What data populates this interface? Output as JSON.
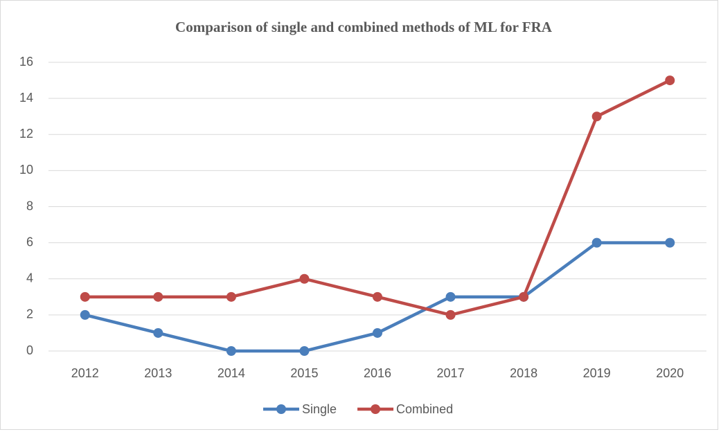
{
  "chart_data": {
    "type": "line",
    "title": "Comparison of single and combined methods of ML for FRA",
    "categories": [
      "2012",
      "2013",
      "2014",
      "2015",
      "2016",
      "2017",
      "2018",
      "2019",
      "2020"
    ],
    "series": [
      {
        "name": "Single",
        "color": "#4a7ebb",
        "values": [
          2,
          1,
          0,
          0,
          1,
          3,
          3,
          6,
          6
        ]
      },
      {
        "name": "Combined",
        "color": "#be4b48",
        "values": [
          3,
          3,
          3,
          4,
          3,
          2,
          3,
          13,
          15
        ]
      }
    ],
    "ylim": [
      0,
      16
    ],
    "yticks": [
      0,
      2,
      4,
      6,
      8,
      10,
      12,
      14,
      16
    ],
    "grid": true,
    "legend": "bottom"
  }
}
